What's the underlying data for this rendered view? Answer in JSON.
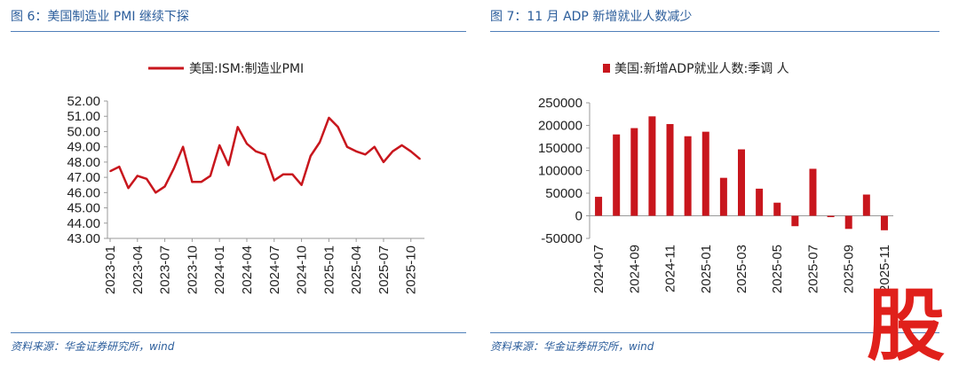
{
  "left_panel": {
    "title": "图 6：美国制造业 PMI 继续下探",
    "source": "资料来源：华金证券研究所，wind"
  },
  "right_panel": {
    "title": "图 7：11 月 ADP 新增就业人数减少",
    "source": "资料来源：华金证券研究所，wind"
  },
  "watermark": {
    "glyph": "股",
    "color": "#e0201b"
  },
  "colors": {
    "series": "#c8161d",
    "axis": "#9a9a9a",
    "title": "#2b5d9b"
  },
  "chart_data": [
    {
      "type": "line",
      "title": "",
      "legend": "美国:ISM:制造业PMI",
      "ylim": [
        43,
        52
      ],
      "yticks": [
        "52.00",
        "51.00",
        "50.00",
        "49.00",
        "48.00",
        "47.00",
        "46.00",
        "45.00",
        "44.00",
        "43.00"
      ],
      "ytick_values": [
        52,
        51,
        50,
        49,
        48,
        47,
        46,
        45,
        44,
        43
      ],
      "xtick_labels": [
        "2023-01",
        "2023-04",
        "2023-07",
        "2023-10",
        "2024-01",
        "2024-04",
        "2024-07",
        "2024-10",
        "2025-01",
        "2025-04",
        "2025-07",
        "2025-10"
      ],
      "xtick_index": [
        0,
        3,
        6,
        9,
        12,
        15,
        18,
        21,
        24,
        27,
        30,
        33
      ],
      "x": [
        "2023-01",
        "2023-02",
        "2023-03",
        "2023-04",
        "2023-05",
        "2023-06",
        "2023-07",
        "2023-08",
        "2023-09",
        "2023-10",
        "2023-11",
        "2023-12",
        "2024-01",
        "2024-02",
        "2024-03",
        "2024-04",
        "2024-05",
        "2024-06",
        "2024-07",
        "2024-08",
        "2024-09",
        "2024-10",
        "2024-11",
        "2024-12",
        "2025-01",
        "2025-02",
        "2025-03",
        "2025-04",
        "2025-05",
        "2025-06",
        "2025-07",
        "2025-08",
        "2025-09",
        "2025-10",
        "2025-11"
      ],
      "values": [
        47.4,
        47.7,
        46.3,
        47.1,
        46.9,
        46.0,
        46.4,
        47.6,
        49.0,
        46.7,
        46.7,
        47.1,
        49.1,
        47.8,
        50.3,
        49.2,
        48.7,
        48.5,
        46.8,
        47.2,
        47.2,
        46.5,
        48.4,
        49.3,
        50.9,
        50.3,
        49.0,
        48.7,
        48.5,
        49.0,
        48.0,
        48.7,
        49.1,
        48.7,
        48.2
      ]
    },
    {
      "type": "bar",
      "title": "",
      "legend": "美国:新增ADP就业人数:季调 人",
      "ylim": [
        -50000,
        250000
      ],
      "yticks": [
        "250000",
        "200000",
        "150000",
        "100000",
        "50000",
        "0",
        "-50000"
      ],
      "ytick_values": [
        250000,
        200000,
        150000,
        100000,
        50000,
        0,
        -50000
      ],
      "xtick_labels": [
        "2024-07",
        "2024-09",
        "2024-11",
        "2025-01",
        "2025-03",
        "2025-05",
        "2025-07",
        "2025-09",
        "2025-11"
      ],
      "xtick_index": [
        0,
        2,
        4,
        6,
        8,
        10,
        12,
        14,
        16
      ],
      "categories": [
        "2024-07",
        "2024-08",
        "2024-09",
        "2024-10",
        "2024-11",
        "2024-12",
        "2025-01",
        "2025-02",
        "2025-03",
        "2025-04",
        "2025-05",
        "2025-06",
        "2025-07",
        "2025-08",
        "2025-09",
        "2025-10",
        "2025-11"
      ],
      "values": [
        42000,
        180000,
        194000,
        220000,
        203000,
        176000,
        186000,
        84000,
        147000,
        60000,
        29000,
        -23000,
        104000,
        -3000,
        -29000,
        47000,
        -32000
      ]
    }
  ]
}
